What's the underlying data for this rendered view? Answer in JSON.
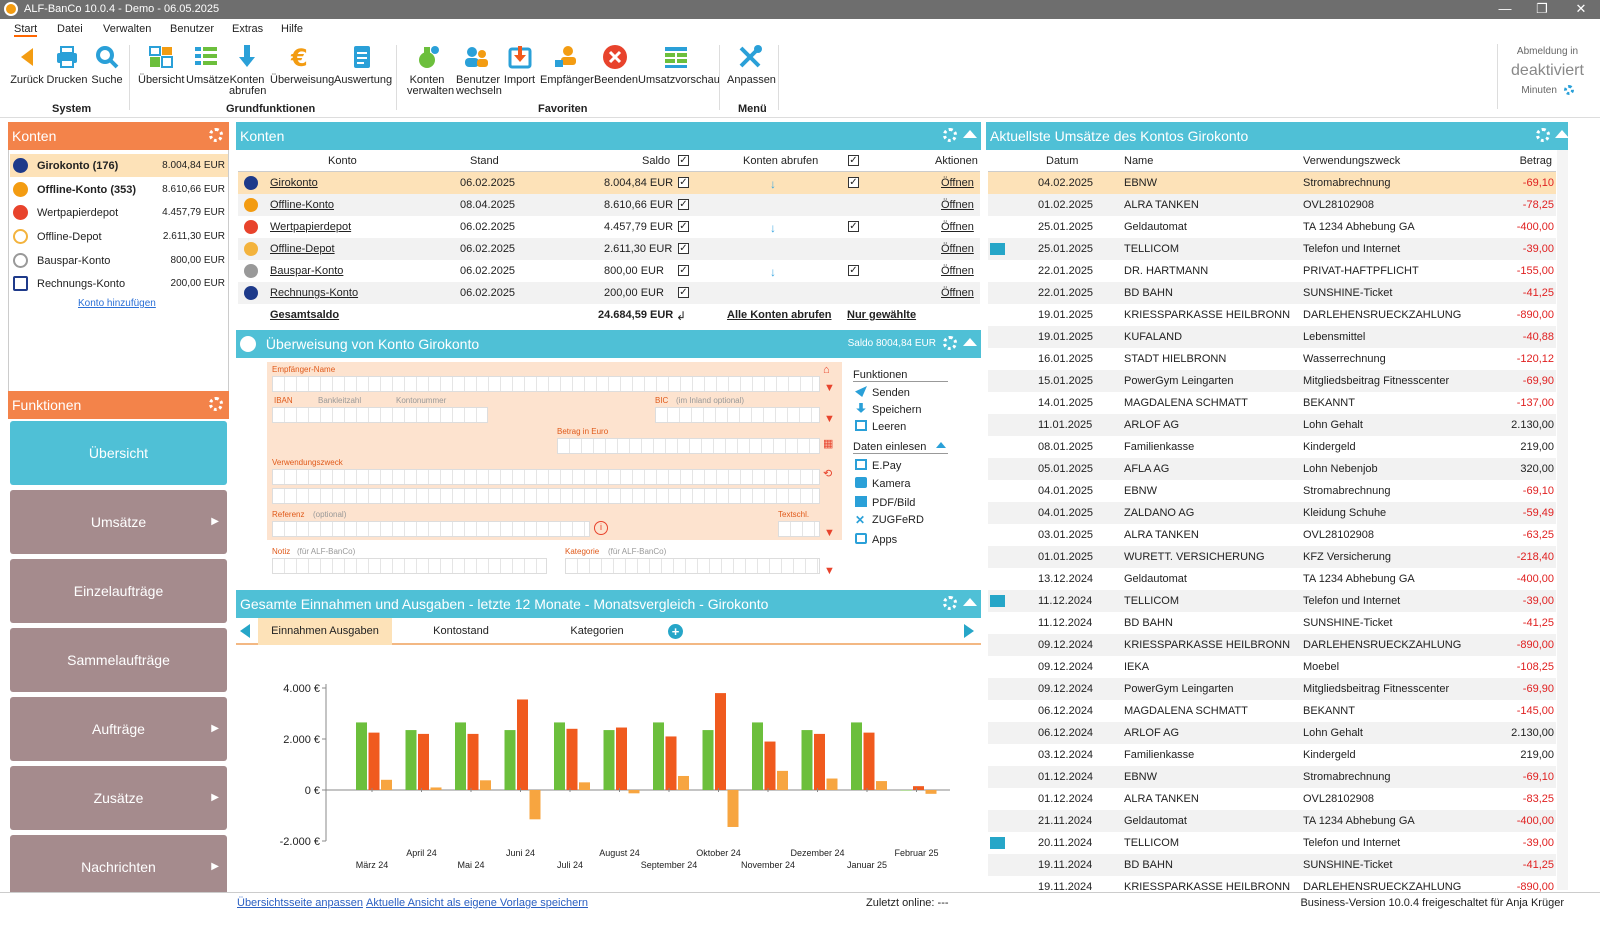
{
  "window": {
    "title": "ALF-BanCo 10.0.4 - Demo  -  06.05.2025",
    "minimize": "—",
    "maximize": "❐",
    "close": "✕"
  },
  "menu": [
    "Start",
    "Datei",
    "Verwalten",
    "Benutzer",
    "Extras",
    "Hilfe"
  ],
  "ribbon": {
    "system": {
      "group": "System",
      "buttons": [
        "Zurück",
        "Drucken",
        "Suche"
      ]
    },
    "grund": {
      "group": "Grundfunktionen",
      "buttons": [
        "Übersicht",
        "Umsätze",
        "Konten abrufen",
        "Überweisung",
        "Auswertung"
      ]
    },
    "favoriten": {
      "group": "Favoriten",
      "buttons": [
        "Konten verwalten",
        "Benutzer wechseln",
        "Import",
        "Empfänger",
        "Beenden",
        "Umsatzvorschau"
      ]
    },
    "menu": {
      "group": "Menü",
      "buttons": [
        "Anpassen"
      ]
    },
    "logout": {
      "label": "Abmeldung in",
      "status": "deaktiviert",
      "unit": "Minuten"
    }
  },
  "konten_left": {
    "title": "Konten",
    "accounts": [
      {
        "name": "Girokonto (176)",
        "amount": "8.004,84 EUR",
        "bold": true
      },
      {
        "name": "Offline-Konto (353)",
        "amount": "8.610,66 EUR",
        "bold": true
      },
      {
        "name": "Wertpapierdepot",
        "amount": "4.457,79 EUR"
      },
      {
        "name": "Offline-Depot",
        "amount": "2.611,30 EUR"
      },
      {
        "name": "Bauspar-Konto",
        "amount": "800,00 EUR"
      },
      {
        "name": "Rechnungs-Konto",
        "amount": "200,00 EUR"
      }
    ],
    "add_link": "Konto hinzufügen"
  },
  "funktionen": {
    "title": "Funktionen",
    "buttons": [
      "Übersicht",
      "Umsätze",
      "Einzelaufträge",
      "Sammelaufträge",
      "Aufträge",
      "Zusätze",
      "Nachrichten"
    ]
  },
  "konten_mid": {
    "title": "Konten",
    "headers": {
      "konto": "Konto",
      "stand": "Stand",
      "saldo": "Saldo",
      "abrufen": "Konten abrufen",
      "aktionen": "Aktionen"
    },
    "rows": [
      {
        "konto": "Girokonto",
        "stand": "06.02.2025",
        "saldo": "8.004,84 EUR",
        "abrufen": true,
        "aktion": "Öffnen"
      },
      {
        "konto": "Offline-Konto",
        "stand": "08.04.2025",
        "saldo": "8.610,66 EUR",
        "abrufen": false,
        "aktion": "Öffnen"
      },
      {
        "konto": "Wertpapierdepot",
        "stand": "06.02.2025",
        "saldo": "4.457,79 EUR",
        "abrufen": true,
        "aktion": "Öffnen"
      },
      {
        "konto": "Offline-Depot",
        "stand": "06.02.2025",
        "saldo": "2.611,30 EUR",
        "abrufen": false,
        "aktion": "Öffnen"
      },
      {
        "konto": "Bauspar-Konto",
        "stand": "06.02.2025",
        "saldo": "800,00 EUR",
        "abrufen": true,
        "aktion": "Öffnen"
      },
      {
        "konto": "Rechnungs-Konto",
        "stand": "06.02.2025",
        "saldo": "200,00 EUR",
        "abrufen": false,
        "aktion": "Öffnen"
      }
    ],
    "total_label": "Gesamtsaldo",
    "total": "24.684,59 EUR",
    "alle_abrufen": "Alle Konten abrufen",
    "nur_gewaehlte": "Nur gewählte"
  },
  "ueberweisung": {
    "title": "Überweisung von Konto Girokonto",
    "saldo": "Saldo 8004,84 EUR",
    "labels": {
      "empfaenger": "Empfänger-Name",
      "iban": "IBAN",
      "bankleitzahl": "Bankleitzahl",
      "kontonummer": "Kontonummer",
      "bic": "BIC",
      "bic_hint": "(im Inland optional)",
      "betrag": "Betrag in Euro",
      "zweck": "Verwendungszweck",
      "referenz": "Referenz",
      "referenz_hint": "(optional)",
      "textschl": "Textschl.",
      "notiz": "Notiz",
      "notiz_hint": "(für ALF-BanCo)",
      "kategorie": "Kategorie",
      "kategorie_hint": "(für ALF-BanCo)"
    },
    "funktionen_title": "Funktionen",
    "funktionen": [
      "Senden",
      "Speichern",
      "Leeren"
    ],
    "daten_title": "Daten einlesen",
    "daten": [
      "E.Pay",
      "Kamera",
      "PDF/Bild",
      "ZUGFeRD",
      "Apps"
    ]
  },
  "chart_panel": {
    "title": "Gesamte Einnahmen und Ausgaben - letzte 12 Monate - Monatsvergleich - Girokonto",
    "tabs": [
      "Einnahmen Ausgaben",
      "Kontostand",
      "Kategorien"
    ]
  },
  "chart_data": {
    "type": "bar",
    "categories": [
      "März 24",
      "April 24",
      "Mai 24",
      "Juni 24",
      "Juli 24",
      "August 24",
      "September 24",
      "Oktober 24",
      "November 24",
      "Dezember 24",
      "Januar 25",
      "Februar 25"
    ],
    "series": [
      {
        "values": [
          2650,
          2350,
          2650,
          2350,
          2650,
          2350,
          2650,
          2350,
          2650,
          2350,
          2650,
          0
        ],
        "color": "#6cbf3c"
      },
      {
        "values": [
          2250,
          2200,
          2200,
          3550,
          2400,
          2450,
          2100,
          3800,
          1900,
          2200,
          2250,
          150
        ],
        "color": "#f05a1e"
      },
      {
        "values": [
          400,
          100,
          380,
          -1150,
          300,
          -130,
          550,
          -1450,
          750,
          450,
          350,
          -150
        ],
        "color": "#f7a540"
      }
    ],
    "ylim": [
      -2000,
      4000
    ],
    "yticks": [
      "-2.000 €",
      "0 €",
      "2.000 €",
      "4.000 €"
    ],
    "grid": false
  },
  "umsaetze": {
    "title": "Aktuellste Umsätze des Kontos Girokonto",
    "headers": {
      "datum": "Datum",
      "name": "Name",
      "zweck": "Verwendungszweck",
      "betrag": "Betrag"
    },
    "rows": [
      {
        "datum": "04.02.2025",
        "name": "EBNW",
        "zweck": "Stromabrechnung",
        "betrag": "-69,10"
      },
      {
        "datum": "01.02.2025",
        "name": "ALRA TANKEN",
        "zweck": "OVL28102908",
        "betrag": "-78,25"
      },
      {
        "datum": "25.01.2025",
        "name": "Geldautomat",
        "zweck": "TA 1234 Abhebung GA",
        "betrag": "-400,00"
      },
      {
        "datum": "25.01.2025",
        "name": "TELLICOM",
        "zweck": "Telefon und Internet",
        "betrag": "-39,00",
        "flag": true
      },
      {
        "datum": "22.01.2025",
        "name": "DR. HARTMANN",
        "zweck": "PRIVAT-HAFTPFLICHT",
        "betrag": "-155,00"
      },
      {
        "datum": "22.01.2025",
        "name": "BD BAHN",
        "zweck": "SUNSHINE-Ticket",
        "betrag": "-41,25"
      },
      {
        "datum": "19.01.2025",
        "name": "KRIESSPARKASSE HEILBRONN",
        "zweck": "DARLEHENSRUECKZAHLUNG",
        "betrag": "-890,00"
      },
      {
        "datum": "19.01.2025",
        "name": "KUFALAND",
        "zweck": "Lebensmittel",
        "betrag": "-40,88"
      },
      {
        "datum": "16.01.2025",
        "name": "STADT HIELBRONN",
        "zweck": "Wasserrechnung",
        "betrag": "-120,12"
      },
      {
        "datum": "15.01.2025",
        "name": "PowerGym Leingarten",
        "zweck": "Mitgliedsbeitrag Fitnesscenter",
        "betrag": "-69,90"
      },
      {
        "datum": "14.01.2025",
        "name": "MAGDALENA SCHMATT",
        "zweck": "BEKANNT",
        "betrag": "-137,00"
      },
      {
        "datum": "11.01.2025",
        "name": "ARLOF AG",
        "zweck": "Lohn Gehalt",
        "betrag": "2.130,00"
      },
      {
        "datum": "08.01.2025",
        "name": "Familienkasse",
        "zweck": "Kindergeld",
        "betrag": "219,00"
      },
      {
        "datum": "05.01.2025",
        "name": "AFLA AG",
        "zweck": "Lohn Nebenjob",
        "betrag": "320,00"
      },
      {
        "datum": "04.01.2025",
        "name": "EBNW",
        "zweck": "Stromabrechnung",
        "betrag": "-69,10"
      },
      {
        "datum": "04.01.2025",
        "name": "ZALDANO AG",
        "zweck": "Kleidung Schuhe",
        "betrag": "-59,49"
      },
      {
        "datum": "03.01.2025",
        "name": "ALRA TANKEN",
        "zweck": "OVL28102908",
        "betrag": "-63,25"
      },
      {
        "datum": "01.01.2025",
        "name": "WURETT. VERSICHERUNG",
        "zweck": "KFZ Versicherung",
        "betrag": "-218,40"
      },
      {
        "datum": "13.12.2024",
        "name": "Geldautomat",
        "zweck": "TA 1234 Abhebung GA",
        "betrag": "-400,00"
      },
      {
        "datum": "11.12.2024",
        "name": "TELLICOM",
        "zweck": "Telefon und Internet",
        "betrag": "-39,00",
        "flag": true
      },
      {
        "datum": "11.12.2024",
        "name": "BD BAHN",
        "zweck": "SUNSHINE-Ticket",
        "betrag": "-41,25"
      },
      {
        "datum": "09.12.2024",
        "name": "KRIESSPARKASSE HEILBRONN",
        "zweck": "DARLEHENSRUECKZAHLUNG",
        "betrag": "-890,00"
      },
      {
        "datum": "09.12.2024",
        "name": "IEKA",
        "zweck": "Moebel",
        "betrag": "-108,25"
      },
      {
        "datum": "09.12.2024",
        "name": "PowerGym Leingarten",
        "zweck": "Mitgliedsbeitrag Fitnesscenter",
        "betrag": "-69,90"
      },
      {
        "datum": "06.12.2024",
        "name": "MAGDALENA SCHMATT",
        "zweck": "BEKANNT",
        "betrag": "-145,00"
      },
      {
        "datum": "06.12.2024",
        "name": "ARLOF AG",
        "zweck": "Lohn Gehalt",
        "betrag": "2.130,00"
      },
      {
        "datum": "03.12.2024",
        "name": "Familienkasse",
        "zweck": "Kindergeld",
        "betrag": "219,00"
      },
      {
        "datum": "01.12.2024",
        "name": "EBNW",
        "zweck": "Stromabrechnung",
        "betrag": "-69,10"
      },
      {
        "datum": "01.12.2024",
        "name": "ALRA TANKEN",
        "zweck": "OVL28102908",
        "betrag": "-83,25"
      },
      {
        "datum": "21.11.2024",
        "name": "Geldautomat",
        "zweck": "TA 1234 Abhebung GA",
        "betrag": "-400,00"
      },
      {
        "datum": "20.11.2024",
        "name": "TELLICOM",
        "zweck": "Telefon und Internet",
        "betrag": "-39,00",
        "flag": true
      },
      {
        "datum": "19.11.2024",
        "name": "BD BAHN",
        "zweck": "SUNSHINE-Ticket",
        "betrag": "-41,25"
      },
      {
        "datum": "19.11.2024",
        "name": "KRIESSPARKASSE HEILBRONN",
        "zweck": "DARLEHENSRUECKZAHLUNG",
        "betrag": "-890,00"
      }
    ]
  },
  "status": {
    "link1": "Übersichtsseite anpassen",
    "link2": "Aktuelle Ansicht als eigene Vorlage speichern",
    "online": "Zuletzt online: ---",
    "version": "Business-Version 10.0.4 freigeschaltet für Anja Krüger"
  },
  "colors": {
    "orange": "#f3834a",
    "blue": "#4fc0d6",
    "mauve": "#a58b8d",
    "selection": "#fde2b8",
    "negative": "#e02020"
  }
}
